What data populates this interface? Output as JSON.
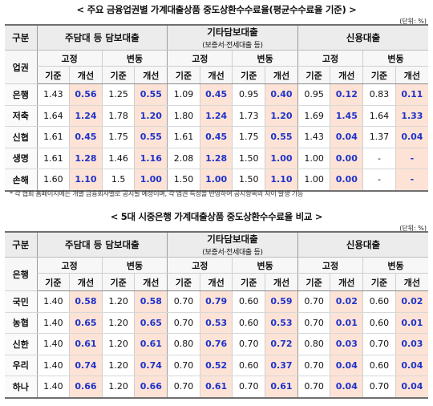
{
  "table1": {
    "title": "< 주요 금융업권별 가계대출상품 중도상환수수료율(평균수수료율 기준) >",
    "unit": "(단위: %)",
    "corner_top": "구분",
    "corner_bottom": "업권",
    "groups": [
      {
        "label": "주담대 등 담보대출",
        "sub": ""
      },
      {
        "label": "기타담보대출",
        "sub": "(보증서·전세대출 등)"
      },
      {
        "label": "신용대출",
        "sub": ""
      }
    ],
    "subgroups": [
      "고정",
      "변동"
    ],
    "cols": [
      "기준",
      "개선"
    ],
    "rows": [
      {
        "name": "은행",
        "values": [
          "1.43",
          "0.56",
          "1.25",
          "0.55",
          "1.09",
          "0.45",
          "0.95",
          "0.40",
          "0.95",
          "0.12",
          "0.83",
          "0.11"
        ]
      },
      {
        "name": "저축",
        "values": [
          "1.64",
          "1.24",
          "1.78",
          "1.20",
          "1.80",
          "1.24",
          "1.73",
          "1.20",
          "1.69",
          "1.45",
          "1.64",
          "1.33"
        ]
      },
      {
        "name": "신협",
        "values": [
          "1.61",
          "0.45",
          "1.75",
          "0.55",
          "1.61",
          "0.45",
          "1.75",
          "0.55",
          "1.43",
          "0.04",
          "1.37",
          "0.04"
        ]
      },
      {
        "name": "생명",
        "values": [
          "1.61",
          "1.28",
          "1.46",
          "1.16",
          "2.08",
          "1.28",
          "1.50",
          "1.00",
          "1.00",
          "0.00",
          "-",
          "-"
        ]
      },
      {
        "name": "손해",
        "values": [
          "1.60",
          "1.10",
          "1.5",
          "1.00",
          "1.50",
          "1.00",
          "1.50",
          "1.10",
          "1.00",
          "0.00",
          "-",
          "-"
        ]
      }
    ],
    "footnote": "* 각 협회 홈페이지에는 개별 금융회사별로 공시될 예정이며, 각 업권 특성을 반영하여 공시항목의 차이 발생 가능"
  },
  "table2": {
    "title": "< 5대 시중은행 가계대출상품 중도상환수수료율 비교 >",
    "unit": "(단위: %)",
    "corner_top": "구분",
    "corner_bottom": "은행",
    "groups": [
      {
        "label": "주담대 등 담보대출",
        "sub": ""
      },
      {
        "label": "기타담보대출",
        "sub": "(보증서·전세대출 등)"
      },
      {
        "label": "신용대출",
        "sub": ""
      }
    ],
    "subgroups": [
      "고정",
      "변동"
    ],
    "cols": [
      "기준",
      "개선"
    ],
    "rows": [
      {
        "name": "국민",
        "values": [
          "1.40",
          "0.58",
          "1.20",
          "0.58",
          "0.70",
          "0.79",
          "0.60",
          "0.59",
          "0.70",
          "0.02",
          "0.60",
          "0.02"
        ]
      },
      {
        "name": "농협",
        "values": [
          "1.40",
          "0.65",
          "1.20",
          "0.65",
          "0.70",
          "0.53",
          "0.60",
          "0.53",
          "0.70",
          "0.01",
          "0.60",
          "0.01"
        ]
      },
      {
        "name": "신한",
        "values": [
          "1.40",
          "0.61",
          "1.20",
          "0.61",
          "0.80",
          "0.76",
          "0.70",
          "0.72",
          "0.80",
          "0.03",
          "0.70",
          "0.03"
        ]
      },
      {
        "name": "우리",
        "values": [
          "1.40",
          "0.74",
          "1.20",
          "0.74",
          "0.70",
          "0.52",
          "0.60",
          "0.37",
          "0.70",
          "0.04",
          "0.60",
          "0.04"
        ]
      },
      {
        "name": "하나",
        "values": [
          "1.40",
          "0.66",
          "1.20",
          "0.66",
          "0.70",
          "0.61",
          "0.70",
          "0.61",
          "0.70",
          "0.04",
          "0.70",
          "0.04"
        ]
      }
    ]
  }
}
